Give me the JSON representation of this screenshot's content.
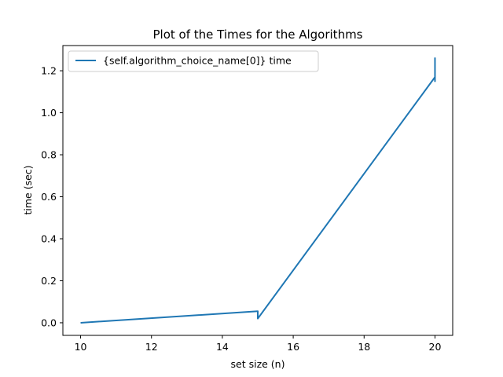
{
  "chart_data": {
    "type": "line",
    "title": "Plot of the Times for the Algorithms",
    "xlabel": "set size (n)",
    "ylabel": "time (sec)",
    "xlim": [
      9.5,
      20.5
    ],
    "ylim": [
      -0.06,
      1.32
    ],
    "xticks": [
      10,
      12,
      14,
      16,
      18,
      20
    ],
    "yticks": [
      0.0,
      0.2,
      0.4,
      0.6,
      0.8,
      1.0,
      1.2
    ],
    "grid": false,
    "legend_position": "top-left",
    "series": [
      {
        "name": "{self.algorithm_choice_name[0]} time",
        "color": "#1f77b4",
        "x": [
          10,
          15,
          15,
          15,
          20,
          20,
          20,
          20,
          20
        ],
        "y": [
          0.0,
          0.055,
          0.055,
          0.02,
          1.17,
          1.26,
          1.15,
          1.2,
          1.18
        ]
      }
    ]
  }
}
